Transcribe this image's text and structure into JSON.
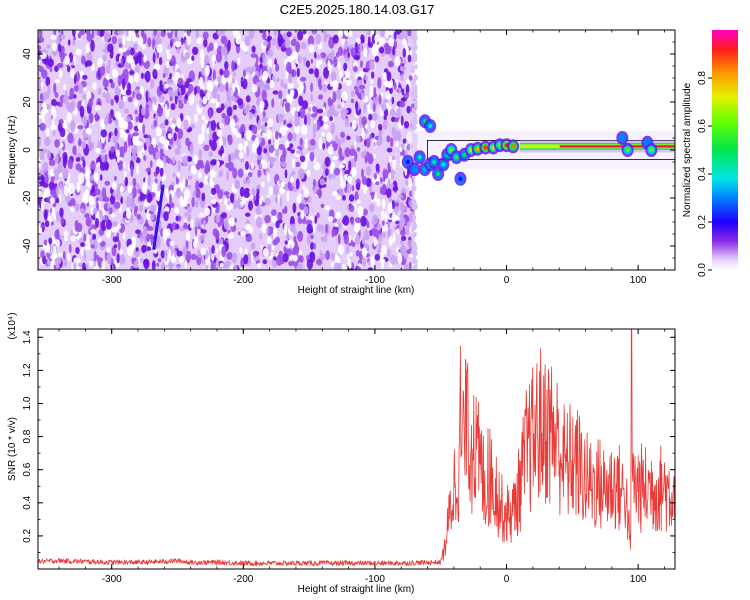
{
  "figure": {
    "title": "C2E5.2025.180.14.03.G17"
  },
  "chart_data": [
    {
      "type": "heatmap",
      "xlabel": "Height of straight line (km)",
      "ylabel": "Frequency (Hz)",
      "xlim": [
        -356,
        128
      ],
      "ylim": [
        -50,
        50
      ],
      "xticks": [
        "-300",
        "-200",
        "-100",
        "0",
        "100"
      ],
      "yticks": [
        "-40",
        "-20",
        "0",
        "20",
        "40"
      ],
      "colorbar": {
        "label": "Normalized spectral amplitude",
        "range": [
          0,
          1
        ],
        "ticks": [
          "0.0",
          "0.2",
          "0.4",
          "0.6",
          "0.8"
        ]
      },
      "noise_region_x": [
        -356,
        -70
      ],
      "oblique_streak": {
        "x": [
          -268,
          -261
        ],
        "y": [
          -41,
          -15
        ]
      },
      "features": [
        {
          "x": -75,
          "y": -5,
          "amp": 0.2
        },
        {
          "x": -70,
          "y": -8,
          "amp": 0.3
        },
        {
          "x": -66,
          "y": -3,
          "amp": 0.4
        },
        {
          "x": -62,
          "y": -8,
          "amp": 0.35
        },
        {
          "x": -58,
          "y": -6,
          "amp": 0.5
        },
        {
          "x": -55,
          "y": -5,
          "amp": 0.45
        },
        {
          "x": -52,
          "y": -10,
          "amp": 0.5
        },
        {
          "x": -48,
          "y": -6,
          "amp": 0.4
        },
        {
          "x": -45,
          "y": -2,
          "amp": 0.5
        },
        {
          "x": -42,
          "y": 0,
          "amp": 0.6
        },
        {
          "x": -38,
          "y": -3,
          "amp": 0.55
        },
        {
          "x": -35,
          "y": -12,
          "amp": 0.2
        },
        {
          "x": -32,
          "y": -2,
          "amp": 0.5
        },
        {
          "x": -27,
          "y": 0,
          "amp": 0.7
        },
        {
          "x": -22,
          "y": 0.5,
          "amp": 0.8
        },
        {
          "x": -16,
          "y": 1,
          "amp": 0.9
        },
        {
          "x": -10,
          "y": 1,
          "amp": 0.75
        },
        {
          "x": -5,
          "y": 2,
          "amp": 0.6
        },
        {
          "x": 0,
          "y": 2,
          "amp": 0.95
        },
        {
          "x": 5,
          "y": 1.5,
          "amp": 0.85
        },
        {
          "x": -62,
          "y": 12,
          "amp": 0.5
        },
        {
          "x": -58,
          "y": 10,
          "amp": 0.4
        },
        {
          "x": 88,
          "y": 5,
          "amp": 0.3
        },
        {
          "x": 92,
          "y": 0,
          "amp": 0.6
        },
        {
          "x": 107,
          "y": 3,
          "amp": 0.3
        },
        {
          "x": 110,
          "y": 0,
          "amp": 0.6
        }
      ],
      "ridge": {
        "x_start": 10,
        "x_end": 128,
        "y": 1.5,
        "amp": 1.0
      },
      "outline_bbox_x": [
        -60,
        128
      ],
      "outline_bbox_y": [
        -4,
        4
      ]
    },
    {
      "type": "line",
      "xlabel": "Height of straight line (km)",
      "ylabel": "SNR (10 * v/v)",
      "scale_label": "(x10⁴)",
      "xlim": [
        -356,
        128
      ],
      "ylim": [
        0,
        1.45
      ],
      "xticks": [
        "-300",
        "-200",
        "-100",
        "0",
        "100"
      ],
      "yticks": [
        "0.2",
        "0.4",
        "0.6",
        "0.8",
        "1.0",
        "1.2",
        "1.4"
      ],
      "color": "#e83a36",
      "envelope": {
        "x": [
          -356,
          -340,
          -320,
          -300,
          -280,
          -260,
          -250,
          -240,
          -220,
          -200,
          -180,
          -160,
          -140,
          -120,
          -100,
          -80,
          -60,
          -50,
          -47,
          -44,
          -40,
          -36,
          -32,
          -28,
          -24,
          -20,
          -16,
          -12,
          -8,
          -4,
          0,
          5,
          10,
          15,
          20,
          25,
          30,
          35,
          40,
          45,
          50,
          55,
          60,
          65,
          70,
          75,
          80,
          85,
          88,
          90,
          93,
          94,
          95,
          97,
          100,
          105,
          110,
          115,
          120,
          125,
          128
        ],
        "y": [
          0.045,
          0.05,
          0.045,
          0.04,
          0.04,
          0.045,
          0.05,
          0.04,
          0.04,
          0.035,
          0.035,
          0.035,
          0.035,
          0.035,
          0.035,
          0.035,
          0.04,
          0.04,
          0.15,
          0.35,
          0.6,
          0.8,
          1.0,
          0.95,
          0.85,
          0.75,
          0.6,
          0.68,
          0.6,
          0.45,
          0.4,
          0.42,
          0.6,
          0.85,
          0.95,
          1.05,
          1.05,
          1.0,
          0.9,
          0.75,
          0.8,
          0.75,
          0.65,
          0.62,
          0.63,
          0.58,
          0.62,
          0.6,
          0.55,
          0.6,
          0.3,
          0.12,
          0.6,
          0.62,
          0.6,
          0.58,
          0.6,
          0.58,
          0.6,
          0.55,
          0.58
        ]
      },
      "spikes": [
        {
          "x": -35,
          "y": 1.35
        },
        {
          "x": -30,
          "y": 1.2
        },
        {
          "x": -25,
          "y": 1.05
        },
        {
          "x": -14,
          "y": 0.85
        },
        {
          "x": 28,
          "y": 1.17
        },
        {
          "x": 95,
          "y": 1.45
        }
      ]
    }
  ]
}
